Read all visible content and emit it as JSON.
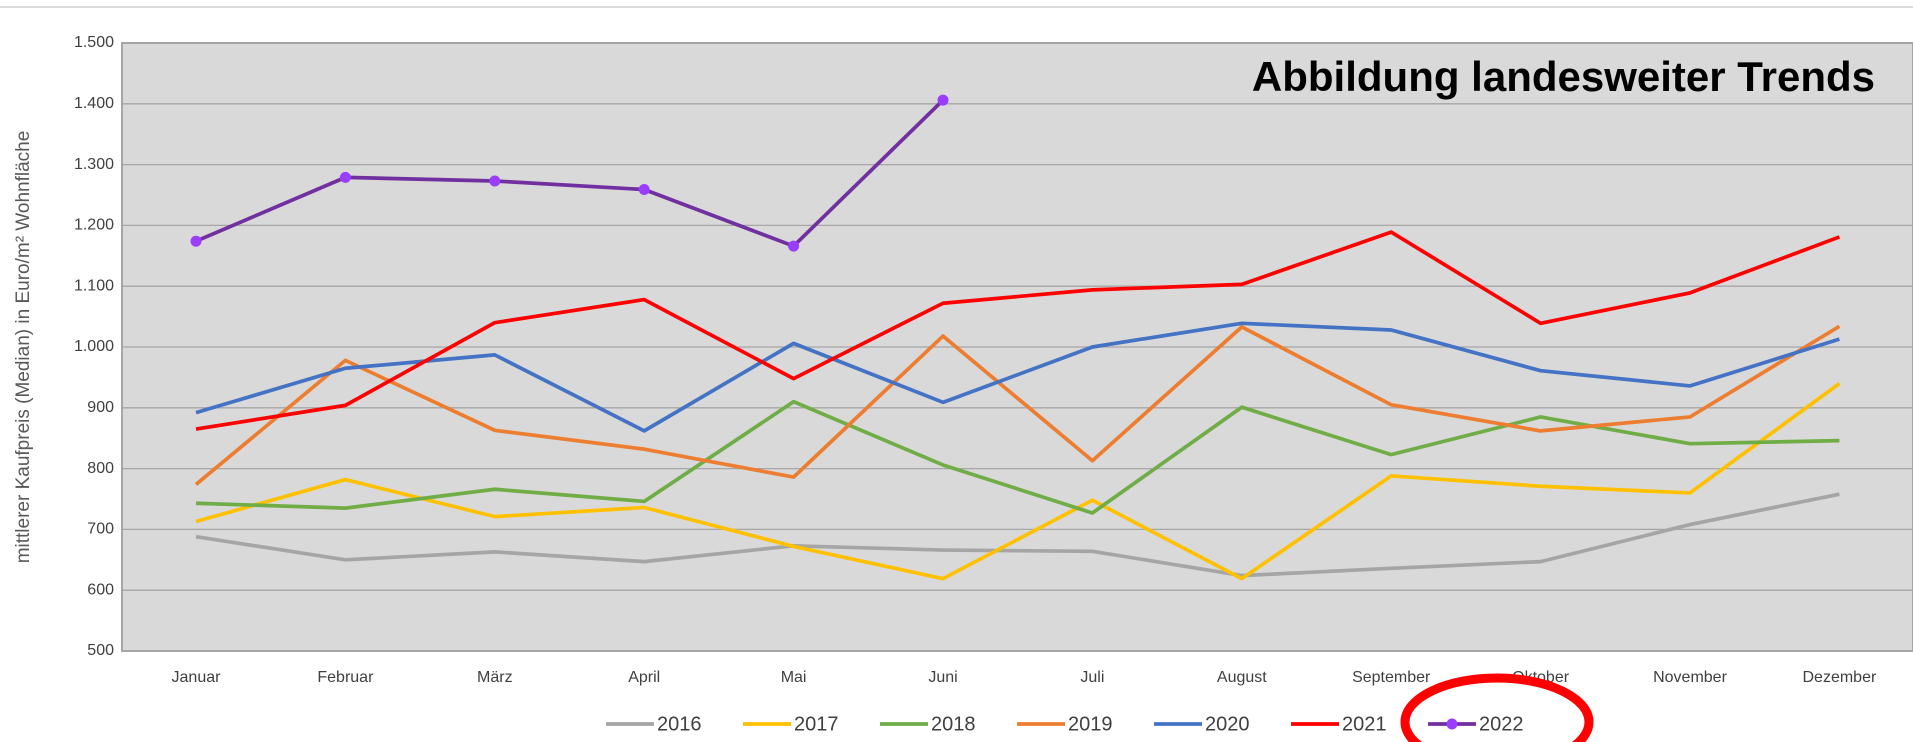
{
  "chart_data": {
    "type": "line",
    "title": "Abbildung landesweiter Trends",
    "y_label": "mittlerer Kaufpreis (Median) in Euro/m² Wohnfläche",
    "categories": [
      "Januar",
      "Februar",
      "März",
      "April",
      "Mai",
      "Juni",
      "Juli",
      "August",
      "September",
      "Oktober",
      "November",
      "Dezember"
    ],
    "ylim": [
      500,
      1500
    ],
    "yticks": [
      500,
      600,
      700,
      800,
      900,
      {
        "value": 1000,
        "label": "1.000"
      },
      {
        "value": 1100,
        "label": "1.100"
      },
      {
        "value": 1200,
        "label": "1.200"
      },
      {
        "value": 1300,
        "label": "1.300"
      },
      {
        "value": 1400,
        "label": "1.400"
      },
      {
        "value": 1500,
        "label": "1.500"
      }
    ],
    "grid": true,
    "legend": "bottom",
    "series": [
      {
        "name": "2016",
        "color": "#a5a5a5",
        "values": [
          688,
          650,
          663,
          647,
          673,
          666,
          664,
          624,
          636,
          647,
          708,
          758
        ]
      },
      {
        "name": "2017",
        "color": "#ffc000",
        "values": [
          713,
          782,
          721,
          736,
          672,
          619,
          748,
          619,
          788,
          771,
          760,
          940
        ]
      },
      {
        "name": "2018",
        "color": "#70ad47",
        "values": [
          743,
          735,
          766,
          746,
          910,
          806,
          727,
          901,
          823,
          885,
          841,
          846
        ]
      },
      {
        "name": "2019",
        "color": "#ed7d31",
        "values": [
          774,
          978,
          863,
          832,
          786,
          1018,
          813,
          1033,
          905,
          862,
          885,
          1034
        ]
      },
      {
        "name": "2020",
        "color": "#4472c4",
        "values": [
          892,
          965,
          987,
          862,
          1006,
          909,
          1000,
          1039,
          1028,
          961,
          936,
          1013
        ]
      },
      {
        "name": "2021",
        "color": "#ff0000",
        "values": [
          865,
          904,
          1040,
          1078,
          948,
          1072,
          1094,
          1103,
          1189,
          1039,
          1089,
          1181
        ]
      },
      {
        "name": "2022",
        "color": "#7030a0",
        "marker_color": "#9b3dff",
        "markers": true,
        "values": [
          1174,
          1279,
          1273,
          1259,
          1166,
          1406,
          null,
          null,
          null,
          null,
          null,
          null
        ]
      }
    ]
  }
}
